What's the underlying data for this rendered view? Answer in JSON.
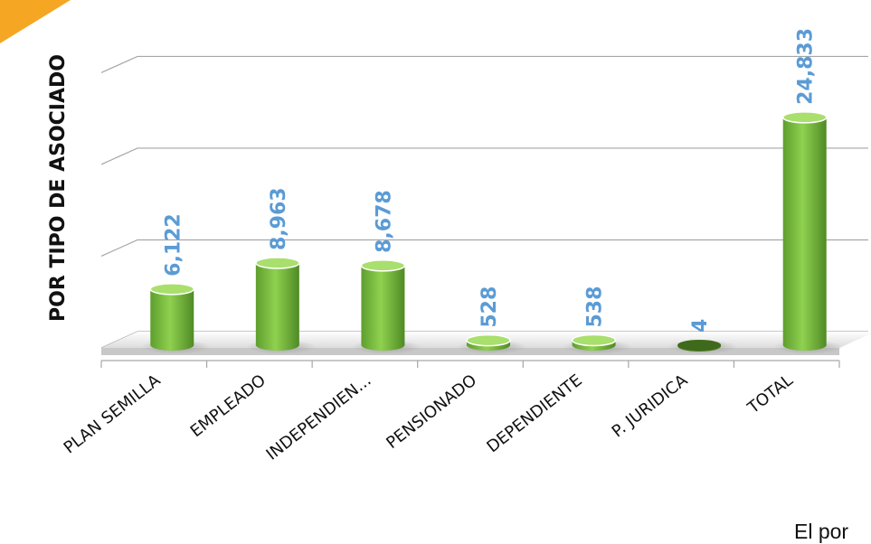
{
  "chart_data": {
    "type": "bar",
    "title": "",
    "ylabel": "POR TIPO DE ASOCIADO",
    "xlabel": "",
    "categories": [
      "PLAN SEMILLA",
      "EMPLEADO",
      "INDEPENDIEN...",
      "PENSIONADO",
      "DEPENDIENTE",
      "P. JURIDICA",
      "TOTAL"
    ],
    "values": [
      6122,
      8963,
      8678,
      528,
      538,
      4,
      24833
    ],
    "value_labels": [
      "6,122",
      "8,963",
      "8,678",
      "528",
      "538",
      "4",
      "24,833"
    ],
    "ylim": [
      0,
      30000
    ],
    "grid": true,
    "bar_color": "#7cc242",
    "label_color": "#5b9bd5"
  },
  "footer_text": "El por"
}
